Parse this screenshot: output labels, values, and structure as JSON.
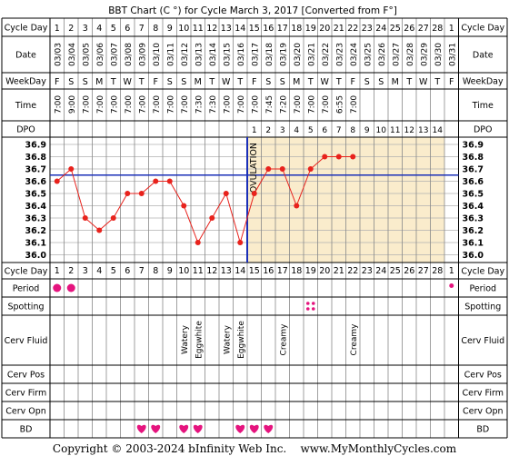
{
  "title": "BBT Chart (C °) for Cycle March 3, 2017  [Converted from F°]",
  "footer": "Copyright © 2003-2024 bInfinity Web Inc.    www.MyMonthlyCycles.com",
  "colors": {
    "line": "#e8221c",
    "point": "#e8221c",
    "coverline": "#1a2fb8",
    "ovulation": "#1a2fb8",
    "postOvShade": "#faeccc",
    "grid": "#b0b0b0",
    "heart": "#e5147e",
    "spot": "#e5147e"
  },
  "row_labels": {
    "cycle_day": "Cycle Day",
    "date": "Date",
    "weekday": "WeekDay",
    "time": "Time",
    "dpo": "DPO",
    "period": "Period",
    "spotting": "Spotting",
    "cerv_fluid": "Cerv Fluid",
    "cerv_pos": "Cerv Pos",
    "cerv_firm": "Cerv Firm",
    "cerv_opn": "Cerv Opn",
    "bd": "BD"
  },
  "days": [
    "1",
    "2",
    "3",
    "4",
    "5",
    "6",
    "7",
    "8",
    "9",
    "10",
    "11",
    "12",
    "13",
    "14",
    "15",
    "16",
    "17",
    "18",
    "19",
    "20",
    "21",
    "22",
    "23",
    "24",
    "25",
    "26",
    "27",
    "28",
    "1"
  ],
  "dates": [
    "03/03",
    "03/04",
    "03/05",
    "03/06",
    "03/07",
    "03/08",
    "03/09",
    "03/10",
    "03/11",
    "03/12",
    "03/13",
    "03/14",
    "03/15",
    "03/16",
    "03/17",
    "03/18",
    "03/19",
    "03/20",
    "03/21",
    "03/22",
    "03/23",
    "03/24",
    "03/25",
    "03/26",
    "03/27",
    "03/28",
    "03/29",
    "03/30",
    "03/31"
  ],
  "weekdays": [
    "F",
    "S",
    "S",
    "M",
    "T",
    "W",
    "T",
    "F",
    "S",
    "S",
    "M",
    "T",
    "W",
    "T",
    "F",
    "S",
    "S",
    "M",
    "T",
    "W",
    "T",
    "F",
    "S",
    "S",
    "M",
    "T",
    "W",
    "T",
    "F"
  ],
  "times": [
    "7:00",
    "9:00",
    "7:00",
    "7:00",
    "7:00",
    "7:00",
    "7:00",
    "7:00",
    "7:00",
    "7:00",
    "7:30",
    "7:30",
    "7:00",
    "7:00",
    "7:00",
    "7:45",
    "7:20",
    "7:00",
    "7:00",
    "7:00",
    "6:55",
    "7:00",
    "",
    "",
    "",
    "",
    "",
    "",
    ""
  ],
  "dpo": [
    "",
    "",
    "",
    "",
    "",
    "",
    "",
    "",
    "",
    "",
    "",
    "",
    "",
    "",
    "1",
    "2",
    "3",
    "4",
    "5",
    "6",
    "7",
    "8",
    "9",
    "10",
    "11",
    "12",
    "13",
    "14",
    ""
  ],
  "cerv_fluid": [
    "",
    "",
    "",
    "",
    "",
    "",
    "",
    "",
    "",
    "Watery",
    "Eggwhite",
    "",
    "Watery",
    "Eggwhite",
    "",
    "",
    "Creamy",
    "",
    "",
    "",
    "",
    "Creamy",
    "",
    "",
    "",
    "",
    "",
    "",
    ""
  ],
  "period": [
    1,
    1,
    0,
    0,
    0,
    0,
    0,
    0,
    0,
    0,
    0,
    0,
    0,
    0,
    0,
    0,
    0,
    0,
    0,
    0,
    0,
    0,
    0,
    0,
    0,
    0,
    0,
    0,
    1
  ],
  "spotting": [
    0,
    0,
    0,
    0,
    0,
    0,
    0,
    0,
    0,
    0,
    0,
    0,
    0,
    0,
    0,
    0,
    0,
    0,
    1,
    0,
    0,
    0,
    0,
    0,
    0,
    0,
    0,
    0,
    0
  ],
  "bd": [
    0,
    0,
    0,
    0,
    0,
    0,
    1,
    1,
    0,
    1,
    1,
    0,
    0,
    1,
    1,
    1,
    0,
    0,
    0,
    0,
    0,
    0,
    0,
    0,
    0,
    0,
    0,
    0,
    0
  ],
  "ovulation_label": "OVULATION",
  "chart_data": {
    "type": "line",
    "title": "BBT Chart (C °) for Cycle March 3, 2017  [Converted from F°]",
    "x": [
      1,
      2,
      3,
      4,
      5,
      6,
      7,
      8,
      9,
      10,
      11,
      12,
      13,
      14,
      15,
      16,
      17,
      18,
      19,
      20,
      21,
      22
    ],
    "y": [
      36.6,
      36.7,
      36.3,
      36.2,
      36.3,
      36.5,
      36.5,
      36.6,
      36.6,
      36.4,
      36.1,
      36.3,
      36.5,
      36.1,
      36.5,
      36.7,
      36.7,
      36.4,
      36.7,
      36.8,
      36.8,
      36.8
    ],
    "ylim": [
      36.0,
      36.9
    ],
    "yticks": [
      "36.9",
      "36.8",
      "36.7",
      "36.6",
      "36.5",
      "36.4",
      "36.3",
      "36.2",
      "36.1",
      "36.0"
    ],
    "coverline": 36.65,
    "ovulation_day": 14,
    "grid": true
  }
}
